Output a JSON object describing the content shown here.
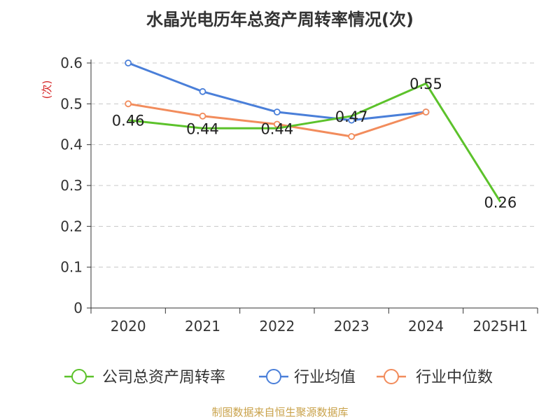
{
  "chart_data": {
    "type": "line",
    "title": "水晶光电历年总资产周转率情况(次)",
    "ylabel": "(次)",
    "xlabel": "",
    "categories": [
      "2020",
      "2021",
      "2022",
      "2023",
      "2024",
      "2025H1"
    ],
    "ylim": [
      0,
      0.6
    ],
    "yticks": [
      0,
      0.1,
      0.2,
      0.3,
      0.4,
      0.5,
      0.6
    ],
    "grid": true,
    "legend_position": "bottom",
    "series": [
      {
        "name": "公司总资产周转率",
        "color": "#5cc22b",
        "values": [
          0.46,
          0.44,
          0.44,
          0.47,
          0.55,
          0.26
        ],
        "data_labels": [
          "0.46",
          "0.44",
          "0.44",
          "0.47",
          "0.55",
          "0.26"
        ],
        "show_markers": false
      },
      {
        "name": "行业均值",
        "color": "#4a7fd9",
        "values": [
          0.6,
          0.53,
          0.48,
          0.46,
          0.48,
          null
        ],
        "show_markers": true
      },
      {
        "name": "行业中位数",
        "color": "#f28c5c",
        "values": [
          0.5,
          0.47,
          0.45,
          0.42,
          0.48,
          null
        ],
        "show_markers": true
      }
    ]
  },
  "source_text": "制图数据来自恒生聚源数据库"
}
